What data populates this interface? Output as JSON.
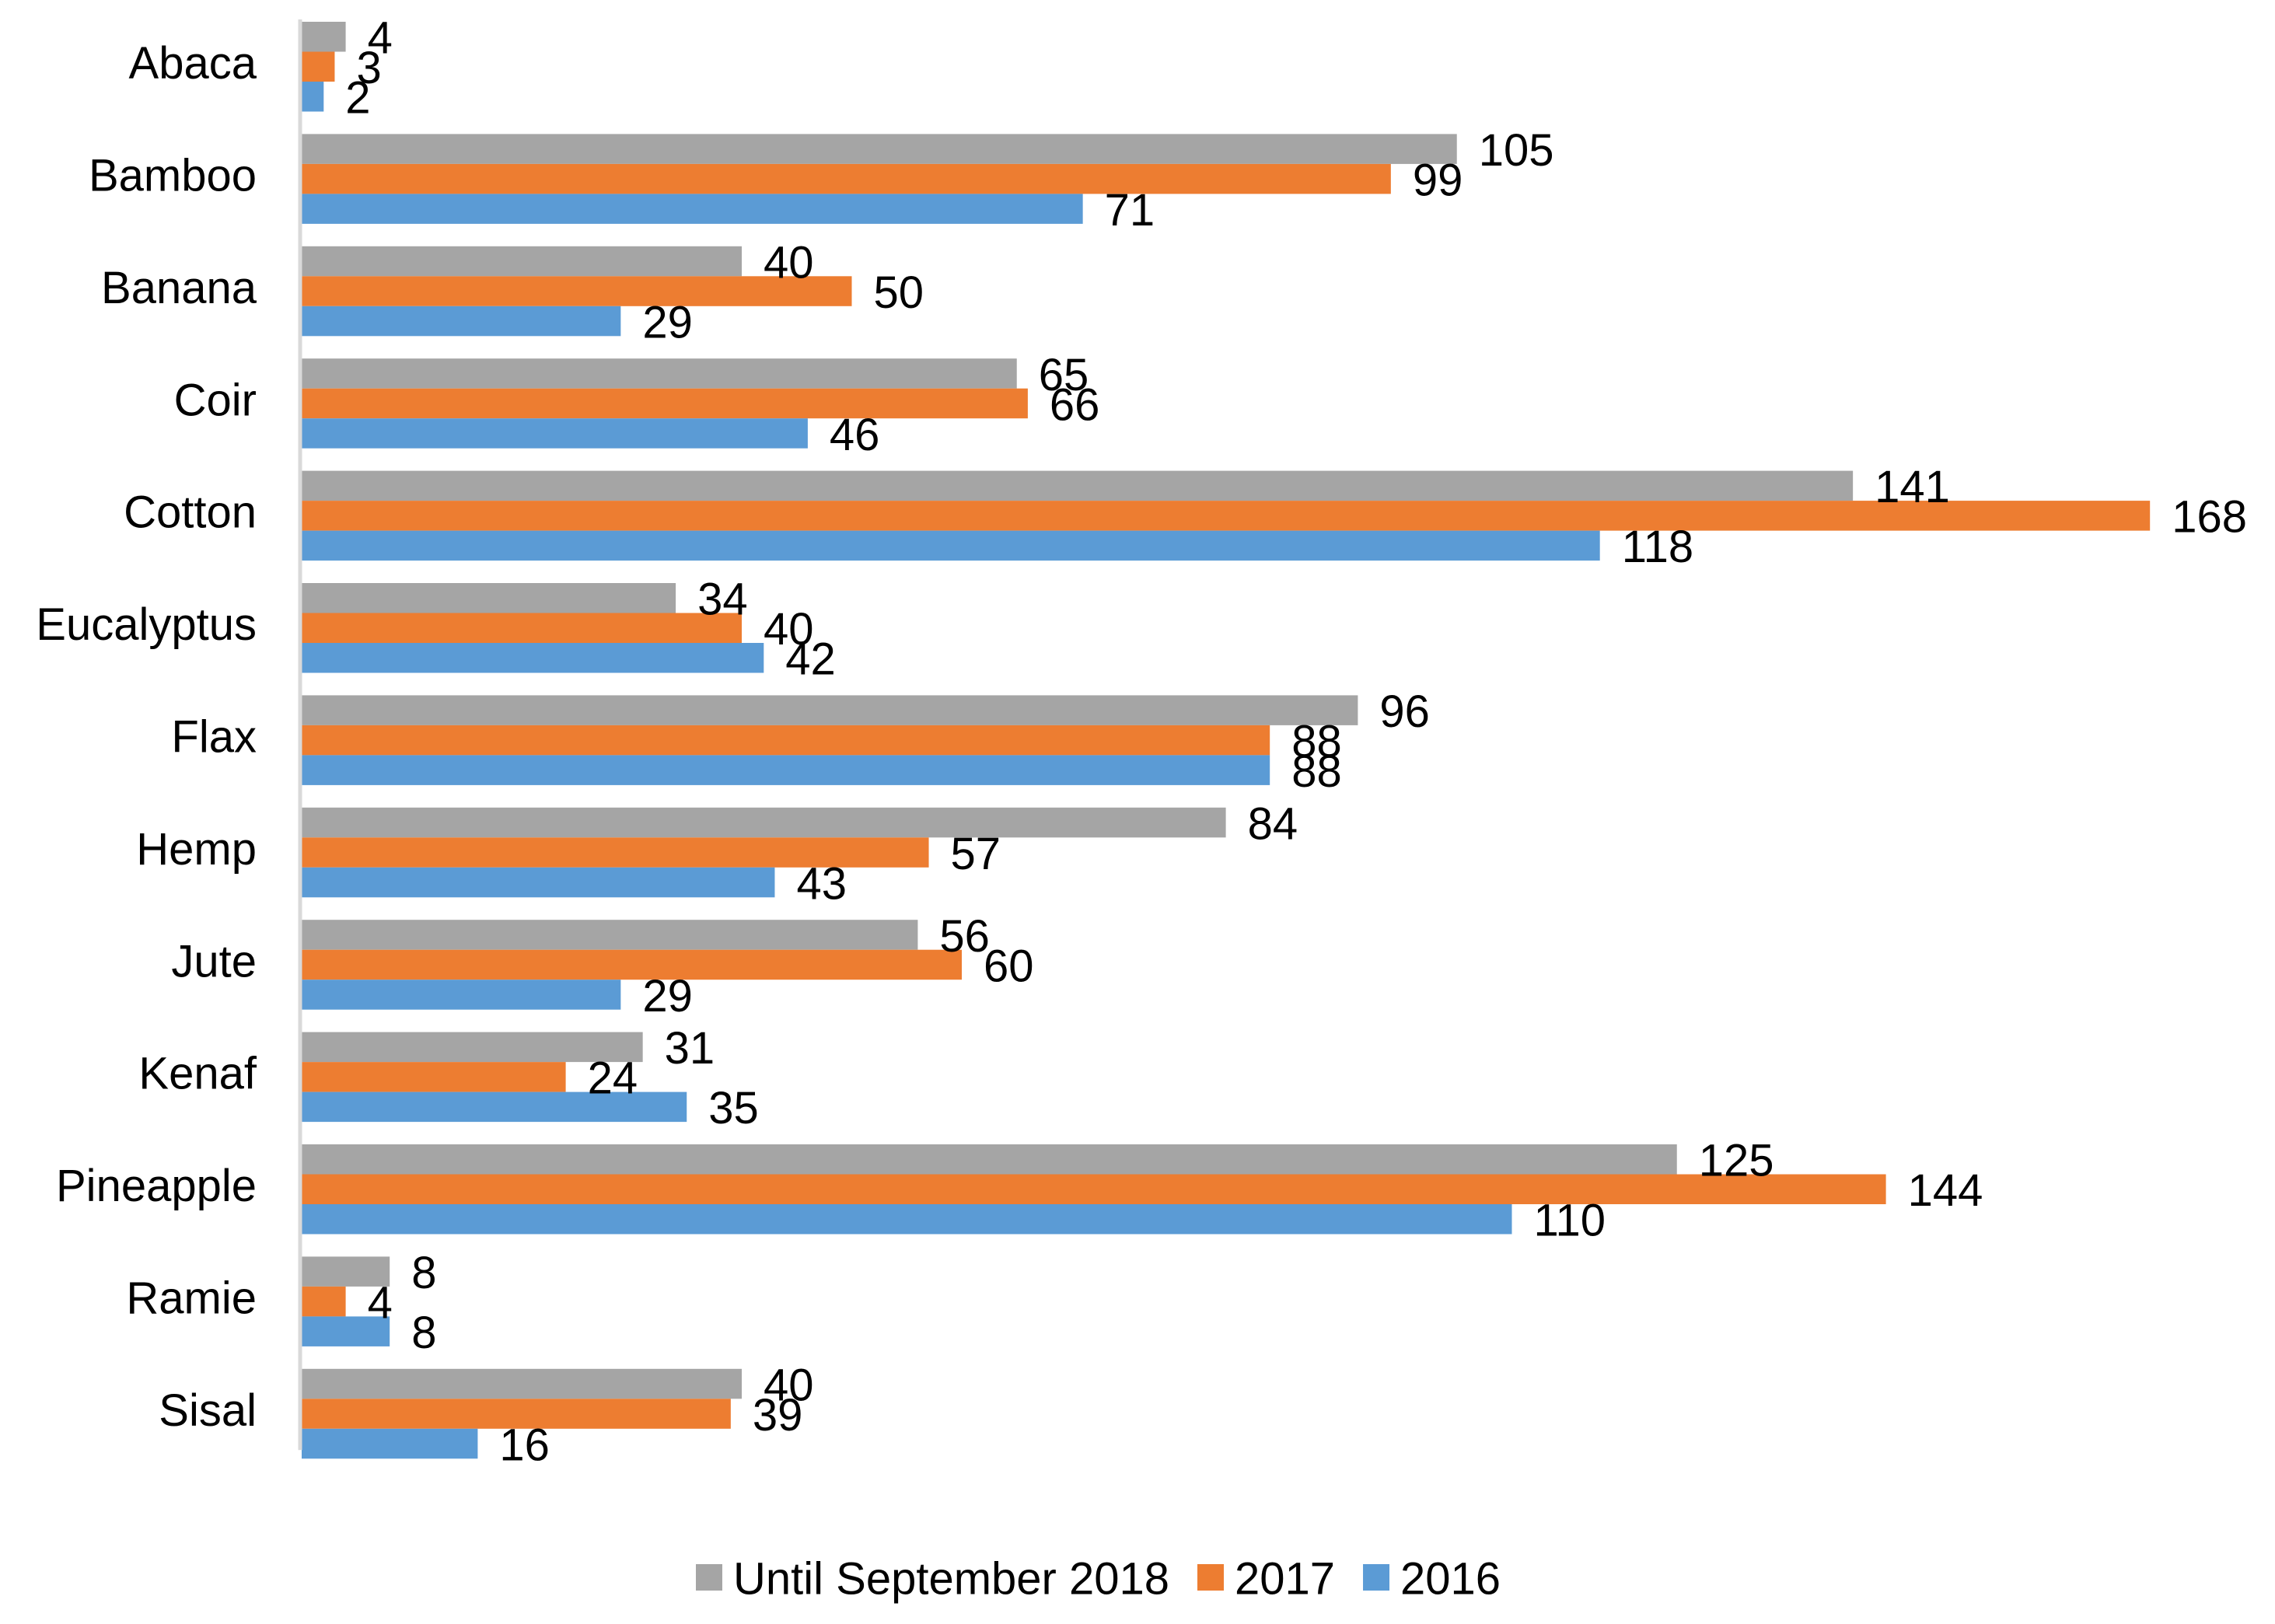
{
  "chart_data": {
    "type": "bar",
    "orientation": "horizontal",
    "title": "",
    "xlabel": "",
    "ylabel": "",
    "xlim": [
      0,
      168
    ],
    "grid": false,
    "legend_position": "bottom",
    "categories": [
      "Abaca",
      "Bamboo",
      "Banana",
      "Coir",
      "Cotton",
      "Eucalyptus",
      "Flax",
      "Hemp",
      "Jute",
      "Kenaf",
      "Pineapple",
      "Ramie",
      "Sisal"
    ],
    "series": [
      {
        "name": "Until September 2018",
        "color": "#A5A5A5",
        "values": [
          4,
          105,
          40,
          65,
          141,
          34,
          96,
          84,
          56,
          31,
          125,
          8,
          40
        ]
      },
      {
        "name": "2017",
        "color": "#ED7D31",
        "values": [
          3,
          99,
          50,
          66,
          168,
          40,
          88,
          57,
          60,
          24,
          144,
          4,
          39
        ]
      },
      {
        "name": "2016",
        "color": "#5B9BD5",
        "values": [
          2,
          71,
          29,
          46,
          118,
          42,
          88,
          43,
          29,
          35,
          110,
          8,
          16
        ]
      }
    ]
  }
}
